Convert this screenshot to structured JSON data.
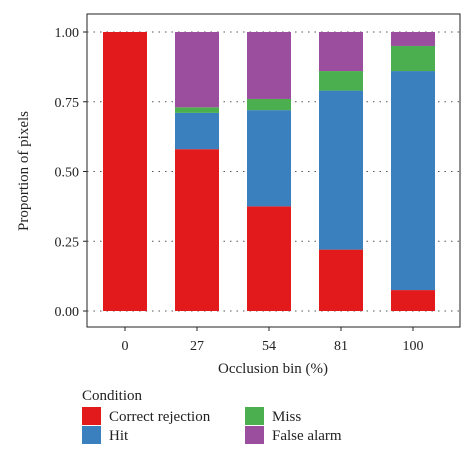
{
  "chart_data": {
    "type": "bar",
    "stacked": true,
    "categories": [
      "0",
      "27",
      "54",
      "81",
      "100"
    ],
    "xlabel": "Occlusion bin (%)",
    "ylabel": "Proportion of pixels",
    "ylim": [
      0,
      1
    ],
    "yticks": [
      "0.00",
      "0.25",
      "0.50",
      "0.75",
      "1.00"
    ],
    "grid": "dotted-horizontal",
    "legend": {
      "title": "Condition",
      "placement": "bottom"
    },
    "series": [
      {
        "name": "Correct rejection",
        "color": "#e31a1c",
        "values": [
          1.0,
          0.58,
          0.375,
          0.22,
          0.075
        ]
      },
      {
        "name": "Hit",
        "color": "#3a7fbe",
        "values": [
          0.0,
          0.13,
          0.345,
          0.57,
          0.785
        ]
      },
      {
        "name": "Miss",
        "color": "#4caf4f",
        "values": [
          0.0,
          0.02,
          0.04,
          0.07,
          0.09
        ]
      },
      {
        "name": "False alarm",
        "color": "#9b4d9e",
        "values": [
          0.0,
          0.27,
          0.24,
          0.14,
          0.05
        ]
      }
    ]
  }
}
